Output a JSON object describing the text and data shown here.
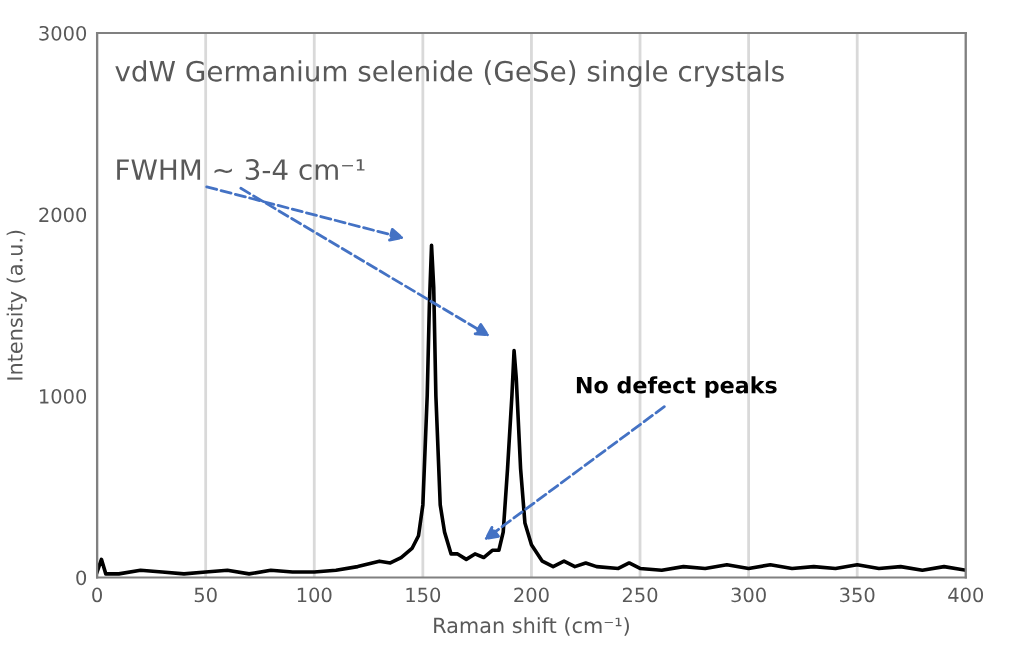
{
  "chart_data": {
    "type": "line",
    "title": "vdW Germanium selenide (GeSe) single crystals",
    "xlabel": "Raman shift (cm⁻¹)",
    "ylabel": "Intensity (a.u.)",
    "x": [
      0,
      2,
      4,
      10,
      20,
      30,
      40,
      50,
      60,
      70,
      80,
      90,
      100,
      110,
      120,
      130,
      135,
      140,
      145,
      148,
      150,
      152,
      153,
      154,
      155,
      156,
      158,
      160,
      163,
      166,
      170,
      174,
      178,
      182,
      185,
      187,
      189,
      191,
      192,
      193,
      195,
      197,
      200,
      205,
      210,
      215,
      220,
      225,
      230,
      240,
      245,
      250,
      260,
      270,
      280,
      290,
      300,
      310,
      320,
      330,
      340,
      350,
      360,
      370,
      380,
      390,
      400
    ],
    "series": [
      {
        "color": "#000000",
        "values": [
          30,
          100,
          20,
          20,
          40,
          30,
          20,
          30,
          40,
          20,
          40,
          30,
          30,
          40,
          60,
          90,
          80,
          110,
          160,
          230,
          400,
          1000,
          1500,
          1830,
          1600,
          1000,
          400,
          250,
          130,
          130,
          100,
          130,
          110,
          150,
          150,
          250,
          600,
          1000,
          1250,
          1100,
          600,
          300,
          180,
          90,
          60,
          90,
          60,
          80,
          60,
          50,
          80,
          50,
          40,
          60,
          50,
          70,
          50,
          70,
          50,
          60,
          50,
          70,
          50,
          60,
          40,
          60,
          40
        ]
      }
    ],
    "xlim": [
      0,
      400
    ],
    "xticks": [
      0,
      50,
      100,
      150,
      200,
      250,
      300,
      350,
      400
    ],
    "ylim": [
      0,
      3000
    ],
    "yticks": [
      0,
      1000,
      2000,
      3000
    ],
    "grid": "x",
    "marker": "none",
    "line_style": "solid",
    "annotations": [
      "FWHM ~ 3-4 cm⁻¹",
      {
        "text": "No defect peaks",
        "x": 176,
        "y": 187
      }
    ]
  }
}
